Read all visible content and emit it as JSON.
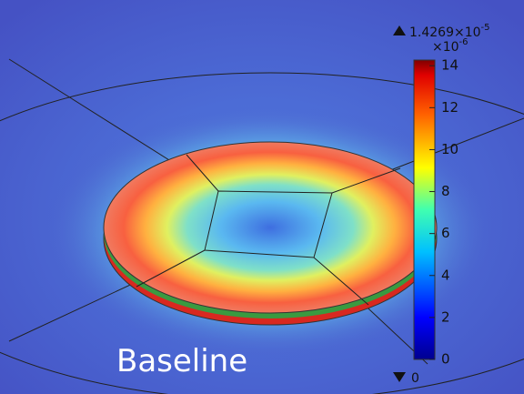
{
  "caption": "Baseline",
  "colorbar": {
    "max_label": {
      "base": "1.4269×10",
      "exponent": "-5"
    },
    "multiplier": {
      "base": "×10",
      "exponent": "-6"
    },
    "min_label": "0",
    "range": [
      0,
      14.269
    ],
    "ticks": [
      0,
      2,
      4,
      6,
      8,
      10,
      12,
      14
    ]
  }
}
